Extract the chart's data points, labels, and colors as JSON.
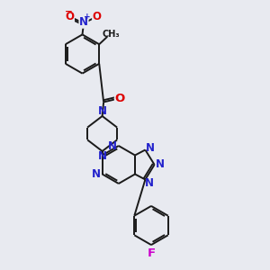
{
  "background_color": "#e8eaf0",
  "bond_color": "#1a1a1a",
  "nitrogen_color": "#2222cc",
  "oxygen_color": "#dd0000",
  "fluorine_color": "#cc00cc",
  "line_width": 1.4,
  "font_size": 8.5,
  "fig_w": 3.0,
  "fig_h": 3.0,
  "dpi": 100,
  "xlim": [
    0,
    10
  ],
  "ylim": [
    0,
    10
  ]
}
